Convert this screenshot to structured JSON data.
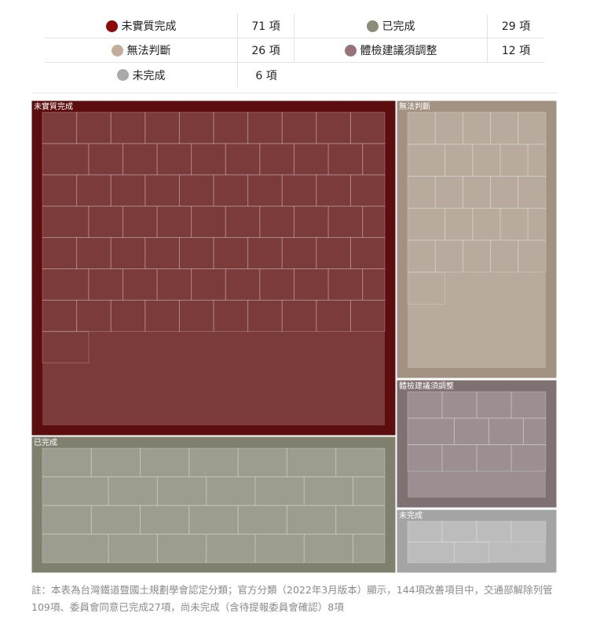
{
  "legend": [
    {
      "name": "未實質完成",
      "count": "71 項",
      "color": "#8c0a0a"
    },
    {
      "name": "已完成",
      "count": "29 項",
      "color": "#8c8c77"
    },
    {
      "name": "無法判斷",
      "count": "26 項",
      "color": "#c4ad9a"
    },
    {
      "name": "體檢建議須調整",
      "count": "12 項",
      "color": "#957379"
    },
    {
      "name": "未完成",
      "count": "6 項",
      "color": "#aaaaaa"
    }
  ],
  "chart_data": {
    "type": "treemap",
    "categories": [
      "未實質完成",
      "無法判斷",
      "體檢建議須調整",
      "未完成",
      "已完成"
    ],
    "values": [
      71,
      26,
      12,
      6,
      29
    ],
    "colors": {
      "未實質完成": {
        "frame": "#5c0e0e",
        "fill": "#7b3b3b"
      },
      "無法判斷": {
        "frame": "#a39282",
        "fill": "#b8aa9d"
      },
      "體檢建議須調整": {
        "frame": "#7f7072",
        "fill": "#9d8f91"
      },
      "未完成": {
        "frame": "#a4a4a4",
        "fill": "#bcbcbc"
      },
      "已完成": {
        "frame": "#80806f",
        "fill": "#9d9d8f"
      }
    }
  },
  "note": "註：本表為台灣鐵道暨國土規劃學會認定分類；官方分類（2022年3月版本）顯示，144項改善項目中，交通部解除列管109項、委員會同意已完成27項，尚未完成（含待提報委員會確認）8項"
}
